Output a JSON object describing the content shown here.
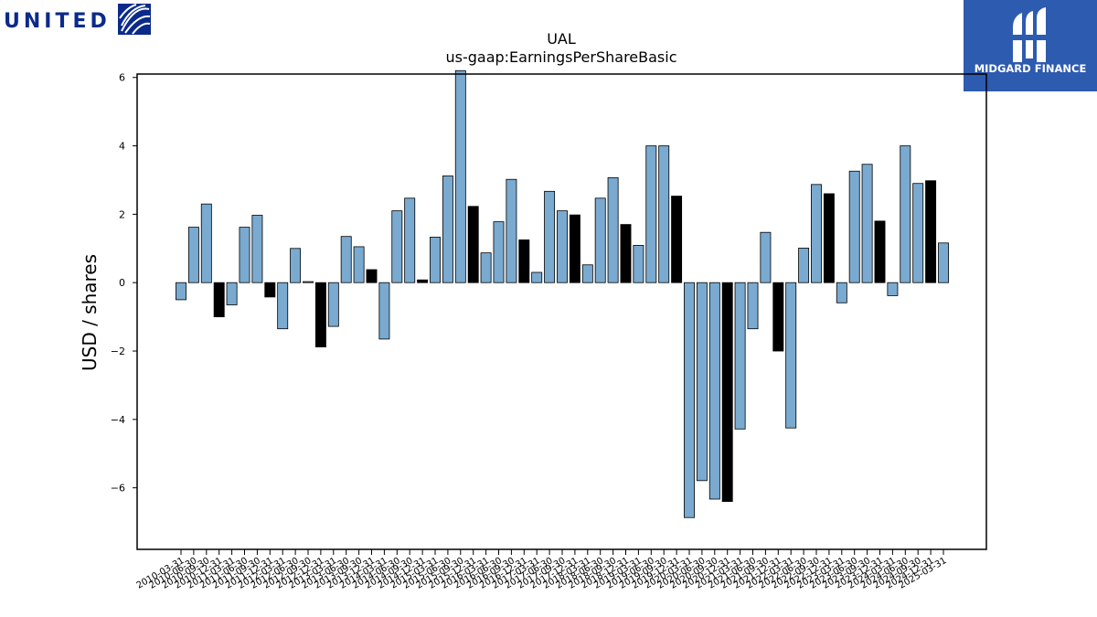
{
  "logos": {
    "united": {
      "text": "UNITED",
      "icon": "globe-icon",
      "color": "#0b2a8a"
    },
    "midgard": {
      "text": "MIDGARD FINANCE",
      "icon": "midgard-mark-icon",
      "background": "#2d5bb0"
    }
  },
  "chart_data": {
    "type": "bar",
    "title": "UAL",
    "subtitle": "us-gaap:EarningsPerShareBasic",
    "xlabel": "",
    "ylabel": "USD / shares",
    "ylim": [
      -7.8,
      6.1
    ],
    "yticks": [
      "6",
      "4",
      "2",
      "0",
      "−2",
      "−4",
      "−6"
    ],
    "ytick_values": [
      6,
      4,
      2,
      0,
      -2,
      -4,
      -6
    ],
    "grid": false,
    "colors": {
      "quarter": "#7aaad0",
      "annual": "#000000"
    },
    "categories": [
      "2010-03-31",
      "2010-06-30",
      "2010-09-30",
      "2010-12-31",
      "2011-03-31",
      "2011-06-30",
      "2011-09-30",
      "2011-12-31",
      "2012-03-31",
      "2012-06-30",
      "2012-09-30",
      "2012-12-31",
      "2013-03-31",
      "2013-06-30",
      "2013-09-30",
      "2013-12-31",
      "2014-03-31",
      "2014-06-30",
      "2014-09-30",
      "2014-12-31",
      "2015-03-31",
      "2015-06-30",
      "2015-09-30",
      "2015-12-31",
      "2016-03-31",
      "2016-06-30",
      "2016-09-30",
      "2016-12-31",
      "2017-03-31",
      "2017-06-30",
      "2017-09-30",
      "2017-12-31",
      "2018-03-31",
      "2018-06-30",
      "2018-09-30",
      "2018-12-31",
      "2019-03-31",
      "2019-06-30",
      "2019-09-30",
      "2019-12-31",
      "2020-03-31",
      "2020-06-30",
      "2020-09-30",
      "2020-12-31",
      "2021-03-31",
      "2021-06-30",
      "2021-09-30",
      "2021-12-31",
      "2022-03-31",
      "2022-06-30",
      "2022-09-30",
      "2022-12-31",
      "2023-03-31",
      "2023-06-30",
      "2023-09-30",
      "2023-12-31",
      "2024-03-31",
      "2024-06-30",
      "2024-09-30",
      "2024-12-31",
      "2025-03-31"
    ],
    "values": [
      -0.5,
      1.62,
      2.3,
      -1.0,
      -0.65,
      1.62,
      1.97,
      -0.42,
      -1.35,
      1.0,
      0.03,
      -1.88,
      -1.28,
      1.35,
      1.05,
      0.38,
      -1.65,
      2.1,
      2.47,
      0.08,
      1.33,
      3.12,
      6.2,
      2.23,
      0.87,
      1.78,
      3.02,
      1.25,
      0.3,
      2.67,
      2.1,
      1.98,
      0.52,
      2.47,
      3.07,
      1.7,
      1.09,
      4.0,
      4.0,
      2.53,
      -6.87,
      -5.79,
      -6.33,
      -6.4,
      -4.28,
      -1.35,
      1.47,
      -2.0,
      -4.25,
      1.01,
      2.87,
      2.6,
      -0.59,
      3.26,
      3.46,
      1.8,
      -0.38,
      4.0,
      2.9,
      2.98,
      1.16
    ],
    "annual": [
      false,
      false,
      false,
      true,
      false,
      false,
      false,
      true,
      false,
      false,
      false,
      true,
      false,
      false,
      false,
      true,
      false,
      false,
      false,
      true,
      false,
      false,
      false,
      true,
      false,
      false,
      false,
      true,
      false,
      false,
      false,
      true,
      false,
      false,
      false,
      true,
      false,
      false,
      false,
      true,
      false,
      false,
      false,
      true,
      false,
      false,
      false,
      true,
      false,
      false,
      false,
      true,
      false,
      false,
      false,
      true,
      false,
      false,
      false,
      true,
      false
    ]
  }
}
